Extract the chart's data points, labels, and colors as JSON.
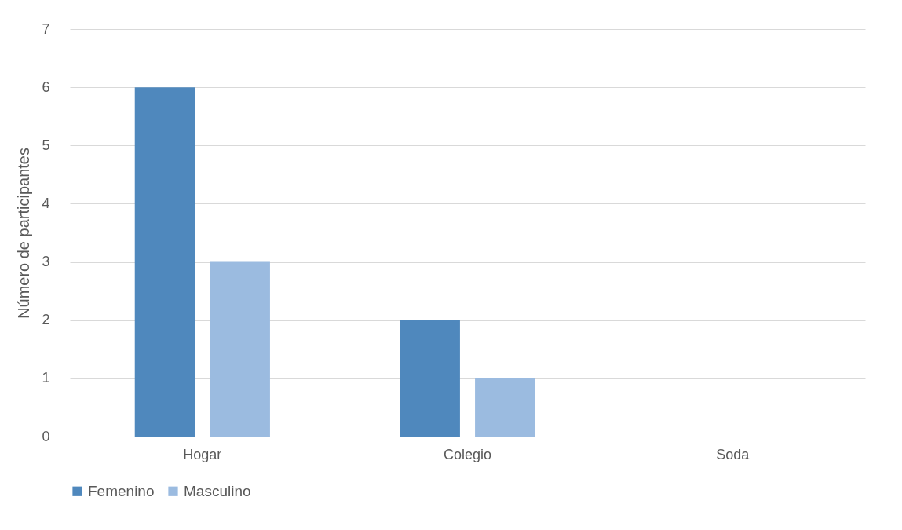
{
  "chart_data": {
    "type": "bar",
    "ylabel": "Número de participantes",
    "categories": [
      "Hogar",
      "Colegio",
      "Soda"
    ],
    "series": [
      {
        "name": "Femenino",
        "color": "#4f88bd",
        "values": [
          6,
          2,
          0
        ]
      },
      {
        "name": "Masculino",
        "color": "#9bbbe0",
        "values": [
          3,
          1,
          0
        ]
      }
    ],
    "ylim": [
      0,
      7
    ],
    "yticks": [
      0,
      1,
      2,
      3,
      4,
      5,
      6,
      7
    ],
    "grid": "y",
    "legend": "bottom"
  }
}
